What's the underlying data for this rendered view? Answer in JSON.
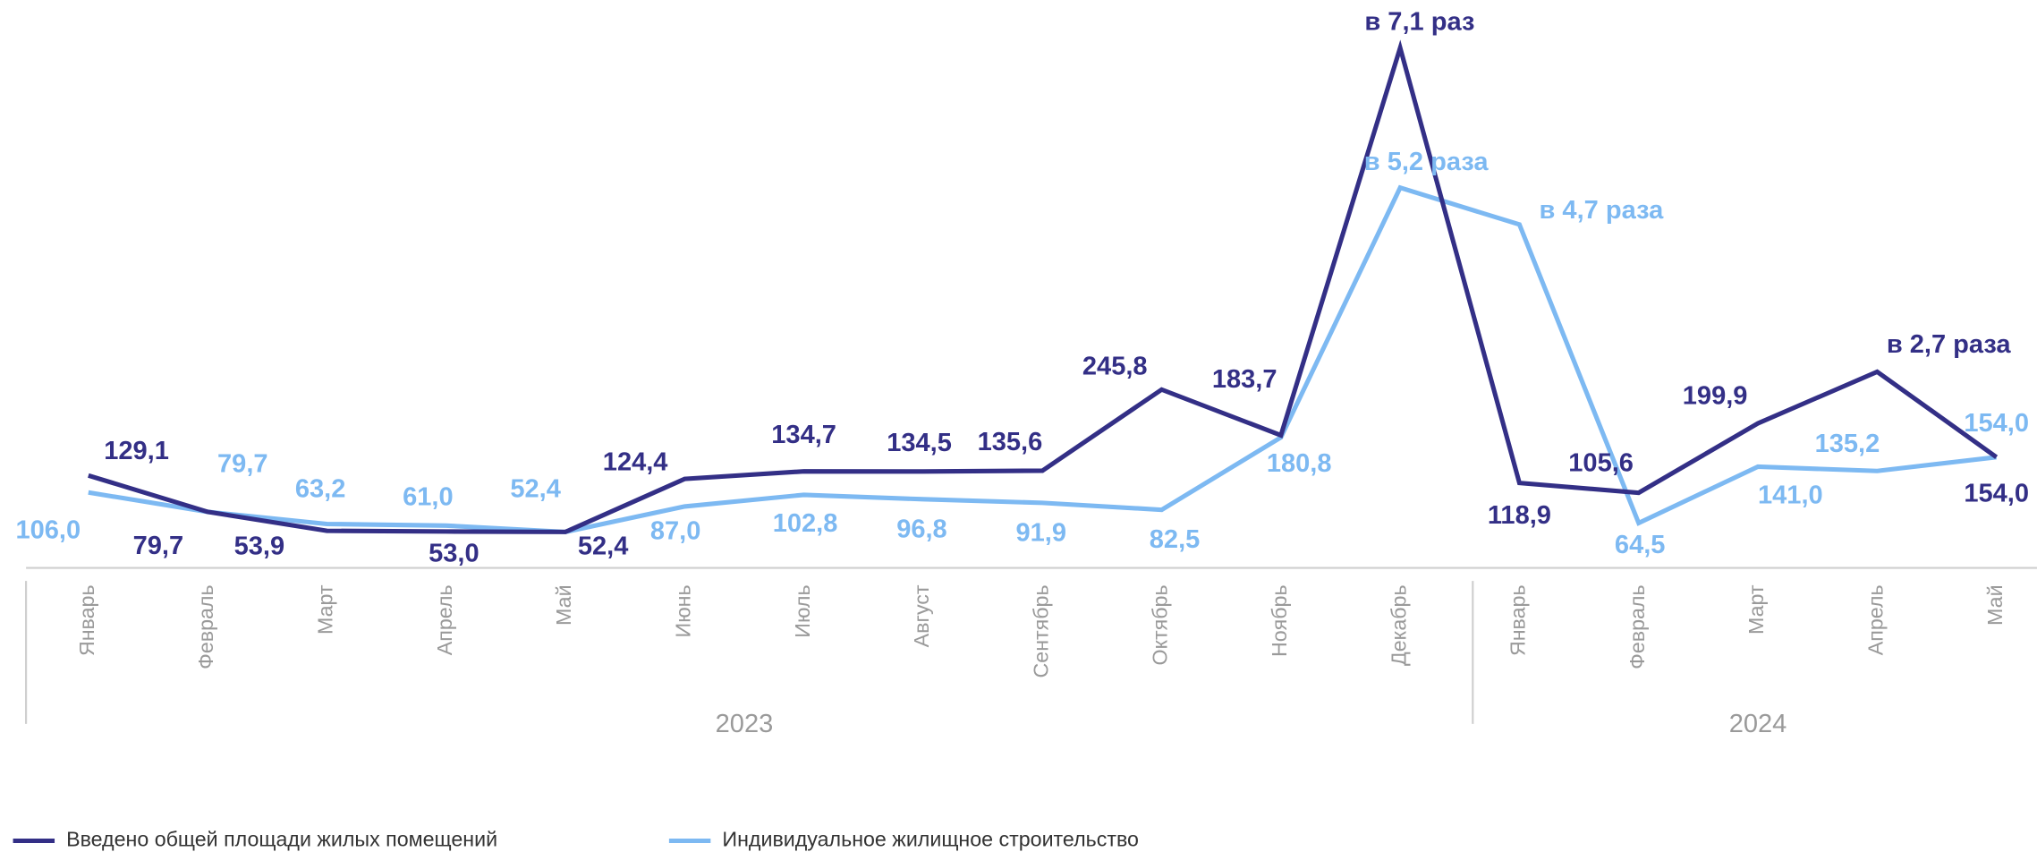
{
  "chart_data": {
    "type": "line",
    "categories": [
      "Январь",
      "Февраль",
      "Март",
      "Апрель",
      "Май",
      "Июнь",
      "Июль",
      "Август",
      "Сентябрь",
      "Октябрь",
      "Ноябрь",
      "Декабрь",
      "Январь",
      "Февраль",
      "Март",
      "Апрель",
      "Май"
    ],
    "years": [
      "2023",
      "2024"
    ],
    "ylim": [
      0,
      775
    ],
    "series": [
      {
        "name": "Введено общей площади жилых помещений",
        "color": "#332f86",
        "values": [
          129.1,
          79.7,
          53.9,
          53.0,
          52.4,
          124.4,
          134.7,
          134.5,
          135.6,
          245.8,
          183.7,
          710,
          118.9,
          105.6,
          199.9,
          270,
          154.0
        ],
        "value_labels": [
          "129,1",
          "79,7",
          "53,9",
          "53,0",
          "52,4",
          "124,4",
          "134,7",
          "134,5",
          "135,6",
          "245,8",
          "183,7",
          "в 7,1 раз",
          "118,9",
          "105,6",
          "199,9",
          "в 2,7 раза",
          "154,0"
        ]
      },
      {
        "name": "Индивидуальное жилищное строительство",
        "color": "#7db9f2",
        "values": [
          106.0,
          79.7,
          63.2,
          61.0,
          52.4,
          87.0,
          102.8,
          96.8,
          91.9,
          82.5,
          180.8,
          520,
          470,
          64.5,
          141.0,
          135.2,
          154.0
        ],
        "value_labels": [
          "106,0",
          "79,7",
          "63,2",
          "61,0",
          "52,4",
          "87,0",
          "102,8",
          "96,8",
          "91,9",
          "82,5",
          "180,8",
          "в 5,2 раза",
          "в 4,7 раза",
          "64,5",
          "141,0",
          "135,2",
          "154,0"
        ]
      }
    ]
  }
}
